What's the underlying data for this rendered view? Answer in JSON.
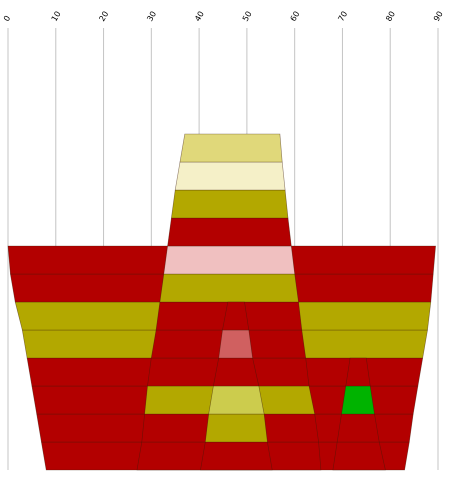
{
  "chart_data": {
    "type": "area",
    "orientation": "horizontal-stacked-profile",
    "title": "",
    "xlabel": "",
    "ylabel": "",
    "xlim": [
      0,
      90
    ],
    "x_ticks": [
      {
        "value": 0,
        "label": "0"
      },
      {
        "value": 10,
        "label": "10"
      },
      {
        "value": 20,
        "label": "20"
      },
      {
        "value": 30,
        "label": "30"
      },
      {
        "value": 40,
        "label": "40"
      },
      {
        "value": 50,
        "label": "50"
      },
      {
        "value": 60,
        "label": "60"
      },
      {
        "value": 70,
        "label": "70"
      },
      {
        "value": 80,
        "label": "80"
      },
      {
        "value": 90,
        "label": "90"
      }
    ],
    "grid": "vertical",
    "legend": "none",
    "colors": {
      "red": "#b30000",
      "olive": "#b3a800",
      "pale-olive": "#cccc4d",
      "cream": "#f5f0c8",
      "light-olive": "#e0d87a",
      "pink": "#f0c0c0",
      "light-red": "#d06060",
      "green": "#00b300"
    },
    "peaks": [
      {
        "name": "",
        "bands": [
          {
            "x_bottom": [
              8.0,
              83.0
            ],
            "x_top": [
              7.0,
              84.0
            ],
            "color": "red"
          },
          {
            "x_bottom": [
              7.0,
              84.0
            ],
            "x_top": [
              6.0,
              84.8
            ],
            "color": "red"
          },
          {
            "x_bottom": [
              6.0,
              84.8
            ],
            "x_top": [
              5.0,
              85.8
            ],
            "color": "red"
          },
          {
            "x_bottom": [
              5.0,
              85.8
            ],
            "x_top": [
              4.0,
              86.8
            ],
            "color": "red"
          },
          {
            "x_bottom": [
              4.0,
              86.8
            ],
            "x_top": [
              3.0,
              87.8
            ],
            "color": "olive"
          },
          {
            "x_bottom": [
              3.0,
              87.8
            ],
            "x_top": [
              1.5,
              88.5
            ],
            "color": "olive"
          },
          {
            "x_bottom": [
              1.5,
              88.5
            ],
            "x_top": [
              0.5,
              89.0
            ],
            "color": "red"
          },
          {
            "x_bottom": [
              0.5,
              89.0
            ],
            "x_top": [
              0.0,
              89.5
            ],
            "color": "red"
          }
        ]
      },
      {
        "name": "",
        "bands": [
          {
            "x_bottom": [
              27.0,
              65.5
            ],
            "x_top": [
              28.0,
              65.0
            ],
            "color": "red"
          },
          {
            "x_bottom": [
              28.0,
              65.0
            ],
            "x_top": [
              28.6,
              64.2
            ],
            "color": "red"
          },
          {
            "x_bottom": [
              28.6,
              64.2
            ],
            "x_top": [
              29.2,
              63.0
            ],
            "color": "olive"
          },
          {
            "x_bottom": [
              29.2,
              63.0
            ],
            "x_top": [
              30.0,
              62.3
            ],
            "color": "red"
          },
          {
            "x_bottom": [
              30.0,
              62.3
            ],
            "x_top": [
              31.0,
              61.5
            ],
            "color": "red"
          },
          {
            "x_bottom": [
              31.0,
              61.5
            ],
            "x_top": [
              31.8,
              60.8
            ],
            "color": "red"
          },
          {
            "x_bottom": [
              31.8,
              60.8
            ],
            "x_top": [
              32.6,
              60.0
            ],
            "color": "olive"
          },
          {
            "x_bottom": [
              32.6,
              60.0
            ],
            "x_top": [
              33.4,
              59.3
            ],
            "color": "pink"
          },
          {
            "x_bottom": [
              33.4,
              59.3
            ],
            "x_top": [
              34.2,
              58.6
            ],
            "color": "red"
          },
          {
            "x_bottom": [
              34.2,
              58.6
            ],
            "x_top": [
              35.0,
              58.0
            ],
            "color": "olive"
          },
          {
            "x_bottom": [
              35.0,
              58.0
            ],
            "x_top": [
              36.0,
              57.4
            ],
            "color": "cream"
          },
          {
            "x_bottom": [
              36.0,
              57.4
            ],
            "x_top": [
              37.0,
              56.9
            ],
            "color": "light-olive"
          }
        ]
      },
      {
        "name": "",
        "bands": [
          {
            "x_bottom": [
              40.3,
              55.3
            ],
            "x_top": [
              41.3,
              54.3
            ],
            "color": "red"
          },
          {
            "x_bottom": [
              41.3,
              54.3
            ],
            "x_top": [
              42.0,
              53.6
            ],
            "color": "olive"
          },
          {
            "x_bottom": [
              42.0,
              53.6
            ],
            "x_top": [
              43.0,
              52.5
            ],
            "color": "pale-olive"
          },
          {
            "x_bottom": [
              43.0,
              52.5
            ],
            "x_top": [
              44.1,
              51.2
            ],
            "color": "red"
          },
          {
            "x_bottom": [
              44.1,
              51.2
            ],
            "x_top": [
              44.9,
              50.4
            ],
            "color": "light-red"
          },
          {
            "x_bottom": [
              44.9,
              50.4
            ],
            "x_top": [
              46.0,
              49.5
            ],
            "color": "red"
          }
        ]
      },
      {
        "name": "",
        "bands": [
          {
            "x_bottom": [
              68.0,
              79.0
            ],
            "x_top": [
              68.9,
              77.7
            ],
            "color": "red"
          },
          {
            "x_bottom": [
              68.9,
              77.7
            ],
            "x_top": [
              69.8,
              76.7
            ],
            "color": "red"
          },
          {
            "x_bottom": [
              69.8,
              76.7
            ],
            "x_top": [
              70.7,
              75.8
            ],
            "color": "green"
          },
          {
            "x_bottom": [
              70.7,
              75.8
            ],
            "x_top": [
              71.6,
              75.0
            ],
            "color": "red"
          }
        ]
      }
    ]
  }
}
